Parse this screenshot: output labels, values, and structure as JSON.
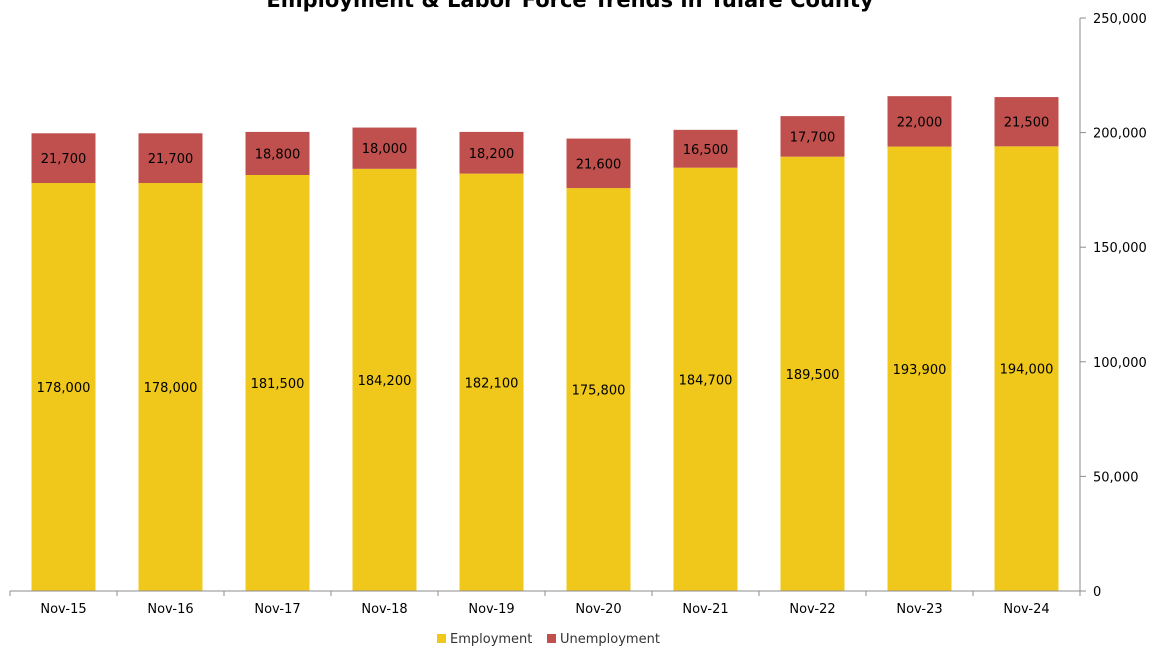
{
  "chart_data": {
    "type": "bar",
    "stacked": true,
    "title": "Employment & Labor Force Trends in Tulare County",
    "categories": [
      "Nov-15",
      "Nov-16",
      "Nov-17",
      "Nov-18",
      "Nov-19",
      "Nov-20",
      "Nov-21",
      "Nov-22",
      "Nov-23",
      "Nov-24"
    ],
    "series": [
      {
        "name": "Employment",
        "color": "#efc81b",
        "values": [
          178000,
          178000,
          181500,
          184200,
          182100,
          175800,
          184700,
          189500,
          193900,
          194000
        ],
        "labels": [
          "178,000",
          "178,000",
          "181,500",
          "184,200",
          "182,100",
          "175,800",
          "184,700",
          "189,500",
          "193,900",
          "194,000"
        ]
      },
      {
        "name": "Unemployment",
        "color": "#c0504d",
        "values": [
          21700,
          21700,
          18800,
          18000,
          18200,
          21600,
          16500,
          17700,
          22000,
          21500
        ],
        "labels": [
          "21,700",
          "21,700",
          "18,800",
          "18,000",
          "18,200",
          "21,600",
          "16,500",
          "17,700",
          "22,000",
          "21,500"
        ]
      }
    ],
    "yaxis": {
      "position": "right",
      "ylim": [
        0,
        250000
      ],
      "ticks": [
        0,
        50000,
        100000,
        150000,
        200000,
        250000
      ],
      "tick_labels": [
        "0",
        "50,000",
        "100,000",
        "150,000",
        "200,000",
        "250,000"
      ]
    },
    "grid": false,
    "legend": "bottom-center"
  }
}
